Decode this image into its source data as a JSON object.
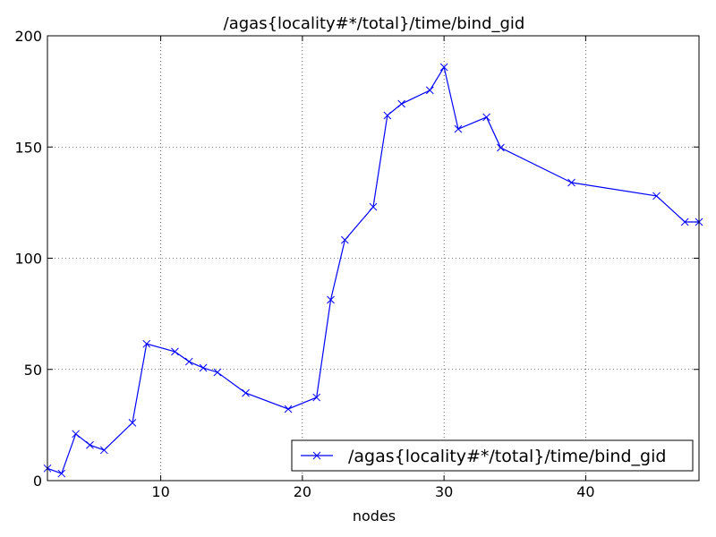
{
  "chart_data": {
    "type": "line",
    "title": "/agas{locality#*/total}/time/bind_gid",
    "x_label": "nodes",
    "x": [
      2,
      3,
      4,
      5,
      6,
      8,
      9,
      11,
      12,
      13,
      14,
      16,
      19,
      21,
      22,
      23,
      25,
      26,
      27,
      29,
      30,
      31,
      33,
      34,
      39,
      45,
      47,
      48
    ],
    "series": [
      {
        "name": "/agas{locality#*/total}/time/bind_gid",
        "color": "#0000ff",
        "values": [
          5.5,
          3.2,
          21,
          16,
          13.7,
          26,
          61.5,
          58,
          53.5,
          50.7,
          48.7,
          39.4,
          32.2,
          37.4,
          81.3,
          108.2,
          123.1,
          164.2,
          169.4,
          175.5,
          185.9,
          158.1,
          163.4,
          149.7,
          134,
          128,
          116.3,
          116.3
        ]
      }
    ],
    "xlim": [
      2,
      48
    ],
    "xticks": [
      10,
      20,
      30,
      40
    ],
    "ylim": [
      0,
      200
    ],
    "yticks": [
      0,
      50,
      100,
      150,
      200
    ],
    "grid": true,
    "legend": "lower right"
  }
}
